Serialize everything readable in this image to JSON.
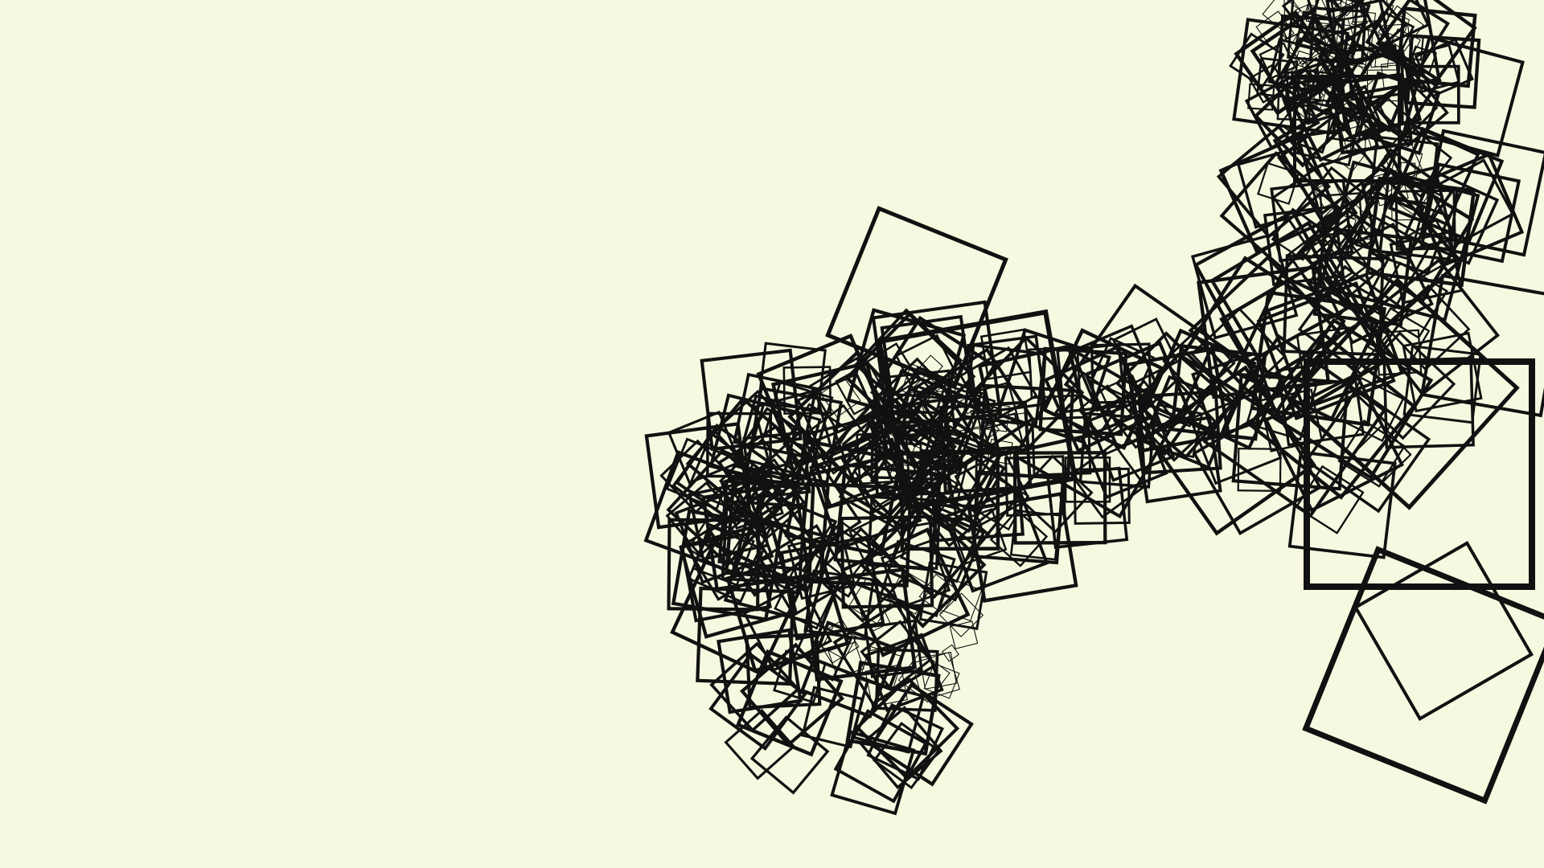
{
  "scene": {
    "description_free": true,
    "background_color": "#f6f9e0",
    "stroke_color": "#111111",
    "shape_kind": "outlined-rotated-squares",
    "text_content": []
  }
}
